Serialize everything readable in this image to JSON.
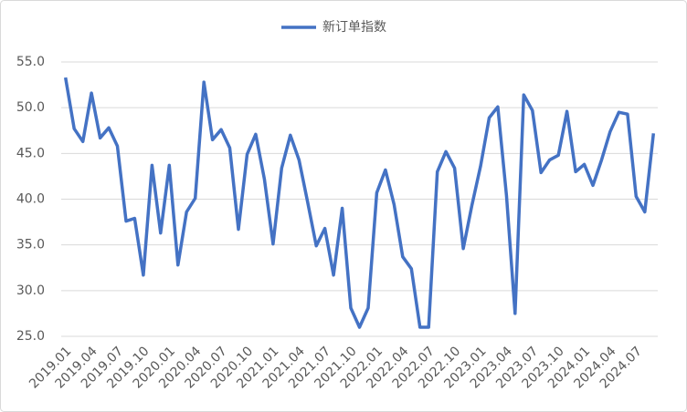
{
  "chart_data": {
    "type": "line",
    "categories": [
      "2019.01",
      null,
      null,
      "2019.04",
      null,
      null,
      "2019.07",
      null,
      null,
      "2019.10",
      null,
      null,
      "2020.01",
      null,
      null,
      "2020.04",
      null,
      null,
      "2020.07",
      null,
      null,
      "2020.10",
      null,
      null,
      "2021.01",
      null,
      null,
      "2021.04",
      null,
      null,
      "2021.07",
      null,
      null,
      "2021.10",
      null,
      null,
      "2022.01",
      null,
      null,
      "2022.04",
      null,
      null,
      "2022.07",
      null,
      null,
      "2022.10",
      null,
      null,
      "2023.01",
      null,
      null,
      "2023.04",
      null,
      null,
      "2023.07",
      null,
      null,
      "2023.10",
      null,
      null,
      "2024.01",
      null,
      null,
      "2024.04",
      null,
      null,
      "2024.07",
      null,
      null
    ],
    "series": [
      {
        "name": "新订单指数",
        "color": "#4472c4",
        "values": [
          53.3,
          47.7,
          46.3,
          51.6,
          46.7,
          47.8,
          45.8,
          37.6,
          37.9,
          31.7,
          43.7,
          36.3,
          43.7,
          32.8,
          38.6,
          40.1,
          52.8,
          46.5,
          47.6,
          45.6,
          36.7,
          44.9,
          47.1,
          42.2,
          35.1,
          43.4,
          47.0,
          44.3,
          39.7,
          34.9,
          36.8,
          31.7,
          39.0,
          28.1,
          26.0,
          28.1,
          40.7,
          43.2,
          39.4,
          33.7,
          32.4,
          26.0,
          26.0,
          43.0,
          45.2,
          43.4,
          34.6,
          39.3,
          43.6,
          48.9,
          50.1,
          40.4,
          27.5,
          51.4,
          49.7,
          42.9,
          44.3,
          44.8,
          49.6,
          43.0,
          43.8,
          41.5,
          44.3,
          47.4,
          49.5,
          49.3,
          40.3,
          38.6,
          47.2
        ]
      }
    ],
    "ylim": [
      25,
      55
    ],
    "yticks": [
      {
        "value": 25,
        "label": "25.0"
      },
      {
        "value": 30,
        "label": "30.0"
      },
      {
        "value": 35,
        "label": "35.0"
      },
      {
        "value": 40,
        "label": "40.0"
      },
      {
        "value": 45,
        "label": "45.0"
      },
      {
        "value": 50,
        "label": "50.0"
      },
      {
        "value": 55,
        "label": "55.0"
      }
    ],
    "grid": true,
    "legend": "top"
  }
}
